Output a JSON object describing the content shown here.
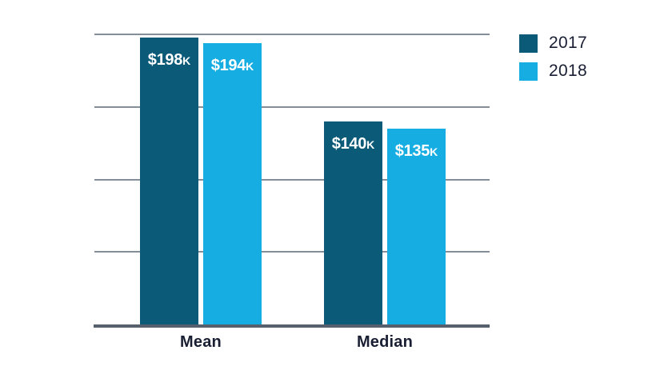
{
  "chart_data": {
    "type": "bar",
    "title": "",
    "xlabel": "",
    "ylabel": "",
    "categories": [
      "Mean",
      "Median"
    ],
    "series": [
      {
        "name": "2017",
        "color": "#0a5a78",
        "values": [
          198,
          140
        ],
        "bar_labels": [
          "$198K",
          "$140K"
        ]
      },
      {
        "name": "2018",
        "color": "#16ade2",
        "values": [
          194,
          135
        ],
        "bar_labels": [
          "$194K",
          "$135K"
        ]
      }
    ],
    "value_unit": "USD thousands",
    "ylim": [
      0,
      200
    ],
    "gridline_values": [
      0,
      50,
      100,
      150,
      200
    ],
    "grid": "horizontal",
    "y_tick_labels_visible": false,
    "legend_position": "top-right"
  },
  "colors": {
    "background": "#ffffff",
    "gridline": "#848e99",
    "axis_line": "#55606c",
    "category_text": "#191e33",
    "legend_text": "#191e33",
    "bar_label_text": "#ffffff"
  }
}
